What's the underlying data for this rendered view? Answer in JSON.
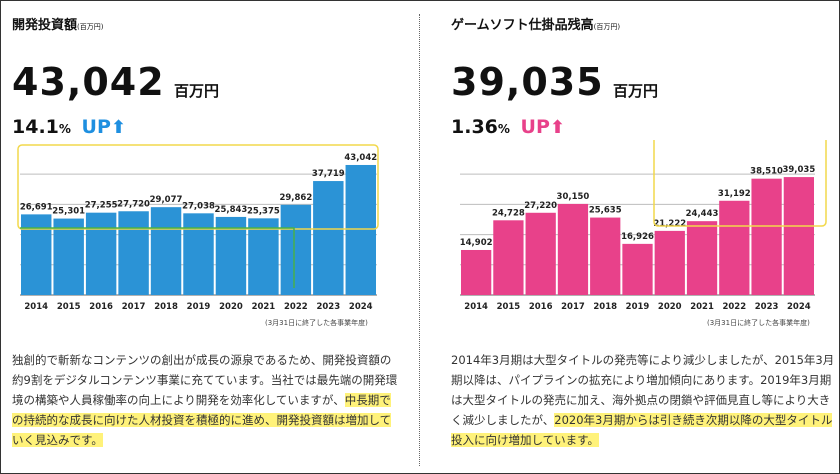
{
  "left": {
    "title": "開発投資額",
    "title_unit": "(百万円)",
    "big_value": "43,042",
    "big_unit": "百万円",
    "growth": "14.1",
    "growth_pct": "%",
    "growth_label": "UP",
    "note": "(3月31日に終了した各事業年度)",
    "body_plain": "独創的で斬新なコンテンツの創出が成長の源泉であるため、開発投資額の約9割をデジタルコンテンツ事業に充てています。当社では最先端の開発環境の構築や人員稼働率の向上により開発を効率化していますが、",
    "body_highlight": "中長期での持続的な成長に向けた人材投資を積極的に進め、開発投資額は増加していく見込みです。"
  },
  "right": {
    "title": "ゲームソフト仕掛品残高",
    "title_unit": "(百万円)",
    "big_value": "39,035",
    "big_unit": "百万円",
    "growth": "1.36",
    "growth_pct": "%",
    "growth_label": "UP",
    "note": "(3月31日に終了した各事業年度)",
    "body_plain": "2014年3月期は大型タイトルの発売等により減少しましたが、2015年3月期以降は、パイプラインの拡充により増加傾向にあります。2019年3月期は大型タイトルの発売に加え、海外拠点の閉鎖や評価見直し等により大きく減少しましたが、",
    "body_highlight": "2020年3月期からは引き続き次期以降の大型タイトル投入に向け増加しています。"
  },
  "colors": {
    "left_bar": "#2b93d6",
    "right_bar": "#e8418a",
    "arrow": "#1e8fe0",
    "right_arrow": "#e8418a",
    "highlight": "#fff27a",
    "outline": "#f2d84b",
    "connector": "#47b04b"
  },
  "chart_data": [
    {
      "type": "bar",
      "title": "開発投資額",
      "categories": [
        "2014",
        "2015",
        "2016",
        "2017",
        "2018",
        "2019",
        "2020",
        "2021",
        "2022",
        "2023",
        "2024"
      ],
      "values": [
        26691,
        25301,
        27255,
        27720,
        29077,
        27038,
        25843,
        25375,
        29862,
        37719,
        43042
      ],
      "value_labels": [
        "26,691",
        "25,301",
        "27,255",
        "27,720",
        "29,077",
        "27,038",
        "25,843",
        "25,375",
        "29,862",
        "37,719",
        "43,042"
      ],
      "ylim": [
        0,
        48000
      ],
      "grid": true
    },
    {
      "type": "bar",
      "title": "ゲームソフト仕掛品残高",
      "categories": [
        "2014",
        "2015",
        "2016",
        "2017",
        "2018",
        "2019",
        "2020",
        "2021",
        "2022",
        "2023",
        "2024"
      ],
      "values": [
        14902,
        24728,
        27220,
        30150,
        25635,
        16926,
        21222,
        24443,
        31192,
        38510,
        39035
      ],
      "value_labels": [
        "14,902",
        "24,728",
        "27,220",
        "30,150",
        "25,635",
        "16,926",
        "21,222",
        "24,443",
        "31,192",
        "38,510",
        "39,035"
      ],
      "ylim": [
        0,
        48000
      ],
      "grid": true
    }
  ]
}
